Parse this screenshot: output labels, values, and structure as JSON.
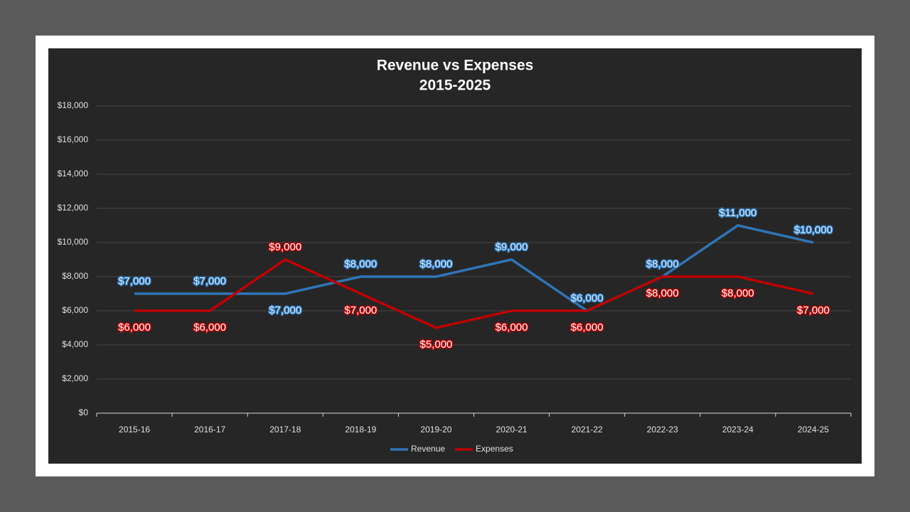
{
  "chart_data": {
    "type": "line",
    "title": "Revenue vs Expenses",
    "subtitle": "2015-2025",
    "categories": [
      "2015-16",
      "2016-17",
      "2017-18",
      "2018-19",
      "2019-20",
      "2020-21",
      "2021-22",
      "2022-23",
      "2023-24",
      "2024-25"
    ],
    "series": [
      {
        "name": "Revenue",
        "color": "#2e75b6",
        "values": [
          7000,
          7000,
          7000,
          8000,
          8000,
          9000,
          6000,
          8000,
          11000,
          10000
        ],
        "value_labels": [
          "$7,000",
          "$7,000",
          "$7,000",
          "$8,000",
          "$8,000",
          "$9,000",
          "$6,000",
          "$8,000",
          "$11,000",
          "$10,000"
        ]
      },
      {
        "name": "Expenses",
        "color": "#c00000",
        "values": [
          6000,
          6000,
          9000,
          7000,
          5000,
          6000,
          6000,
          8000,
          8000,
          7000
        ],
        "value_labels": [
          "$6,000",
          "$6,000",
          "$9,000",
          "$7,000",
          "$5,000",
          "$6,000",
          "$6,000",
          "$8,000",
          "$8,000",
          "$7,000"
        ]
      }
    ],
    "ylim": [
      0,
      18000
    ],
    "yticks": [
      {
        "value": 0,
        "label": "$0"
      },
      {
        "value": 2000,
        "label": "$2,000"
      },
      {
        "value": 4000,
        "label": "$4,000"
      },
      {
        "value": 6000,
        "label": "$6,000"
      },
      {
        "value": 8000,
        "label": "$8,000"
      },
      {
        "value": 10000,
        "label": "$10,000"
      },
      {
        "value": 12000,
        "label": "$12,000"
      },
      {
        "value": 14000,
        "label": "$14,000"
      },
      {
        "value": 16000,
        "label": "$16,000"
      },
      {
        "value": 18000,
        "label": "$18,000"
      }
    ],
    "grid": true,
    "legend": "bottom"
  }
}
